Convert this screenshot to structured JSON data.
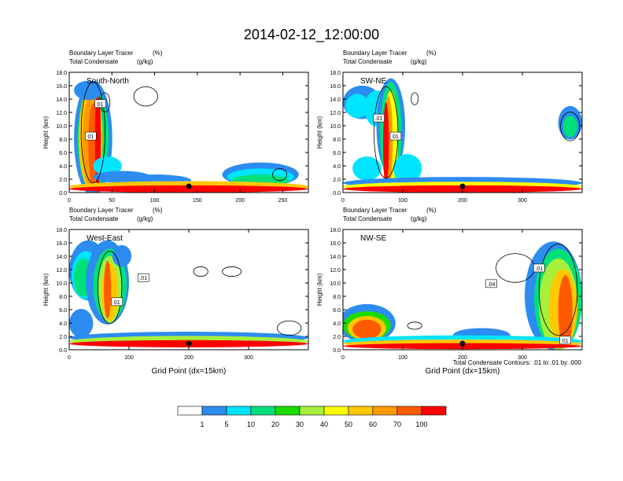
{
  "title": "2014-02-12_12:00:00",
  "colorbar": {
    "labels": [
      "1",
      "5",
      "10",
      "20",
      "30",
      "40",
      "50",
      "60",
      "70",
      "100"
    ],
    "colors": [
      "#ffffff",
      "#2d8cf0",
      "#00e5ff",
      "#00e07a",
      "#1bdc00",
      "#a6f03c",
      "#ffff00",
      "#ffc800",
      "#ff9a00",
      "#ff5a00",
      "#ff0000"
    ]
  },
  "contour_note": "Total Condensate Contours: .01 to .01 by .000",
  "chart_data": [
    {
      "type": "heatmap",
      "panel_label": "South-North",
      "subtitle1_left": "Boundary Layer Tracer",
      "subtitle1_unit": "(%)",
      "subtitle2_left": "Total Condensate",
      "subtitle2_unit": "(g/kg)",
      "ylabel": "Height (km)",
      "xlabel": "",
      "ylim": [
        0,
        18
      ],
      "xlim": [
        0,
        280
      ],
      "yticks": [
        "0.0",
        "2.0",
        "4.0",
        "6.0",
        "8.0",
        "10.0",
        "12.0",
        "14.0",
        "16.0",
        "18.0"
      ],
      "xticks": [
        0,
        50,
        100,
        150,
        200,
        250
      ],
      "contour_labels": [
        "01",
        "01"
      ],
      "marker_x": 140
    },
    {
      "type": "heatmap",
      "panel_label": "SW-NE",
      "subtitle1_left": "Boundary Layer Tracer",
      "subtitle1_unit": "(%)",
      "subtitle2_left": "Total Condensate",
      "subtitle2_unit": "(g/kg)",
      "ylabel": "Height (km)",
      "xlabel": "",
      "ylim": [
        0,
        18
      ],
      "xlim": [
        0,
        400
      ],
      "yticks": [
        "0.0",
        "2.0",
        "4.0",
        "6.0",
        "8.0",
        "10.0",
        "12.0",
        "14.0",
        "16.0",
        "18.0"
      ],
      "xticks": [
        0,
        100,
        200,
        300
      ],
      "contour_labels": [
        ".01",
        "01"
      ],
      "marker_x": 200
    },
    {
      "type": "heatmap",
      "panel_label": "West-East",
      "subtitle1_left": "Boundary Layer Tracer",
      "subtitle1_unit": "(%)",
      "subtitle2_left": "Total Condensate",
      "subtitle2_unit": "(g/kg)",
      "ylabel": "Height (km)",
      "xlabel": "Grid Point (dx=15km)",
      "ylim": [
        0,
        18
      ],
      "xlim": [
        0,
        400
      ],
      "yticks": [
        "0.0",
        "2.0",
        "4.0",
        "6.0",
        "8.0",
        "10.0",
        "12.0",
        "14.0",
        "16.0",
        "18.0"
      ],
      "xticks": [
        0,
        100,
        200,
        300
      ],
      "contour_labels": [
        ".01",
        "01"
      ],
      "marker_x": 200
    },
    {
      "type": "heatmap",
      "panel_label": "NW-SE",
      "subtitle1_left": "Boundary Layer Tracer",
      "subtitle1_unit": "(%)",
      "subtitle2_left": "Total Condensate",
      "subtitle2_unit": "(g/kg)",
      "ylabel": "Height (km)",
      "xlabel": "Grid Point (dx=15km)",
      "ylim": [
        0,
        18
      ],
      "xlim": [
        0,
        400
      ],
      "yticks": [
        "0.0",
        "2.0",
        "4.0",
        "6.0",
        "8.0",
        "10.0",
        "12.0",
        "14.0",
        "16.0",
        "18.0"
      ],
      "xticks": [
        0,
        100,
        200,
        300
      ],
      "contour_labels": [
        ".01",
        ".04",
        "01"
      ],
      "marker_x": 200
    }
  ]
}
